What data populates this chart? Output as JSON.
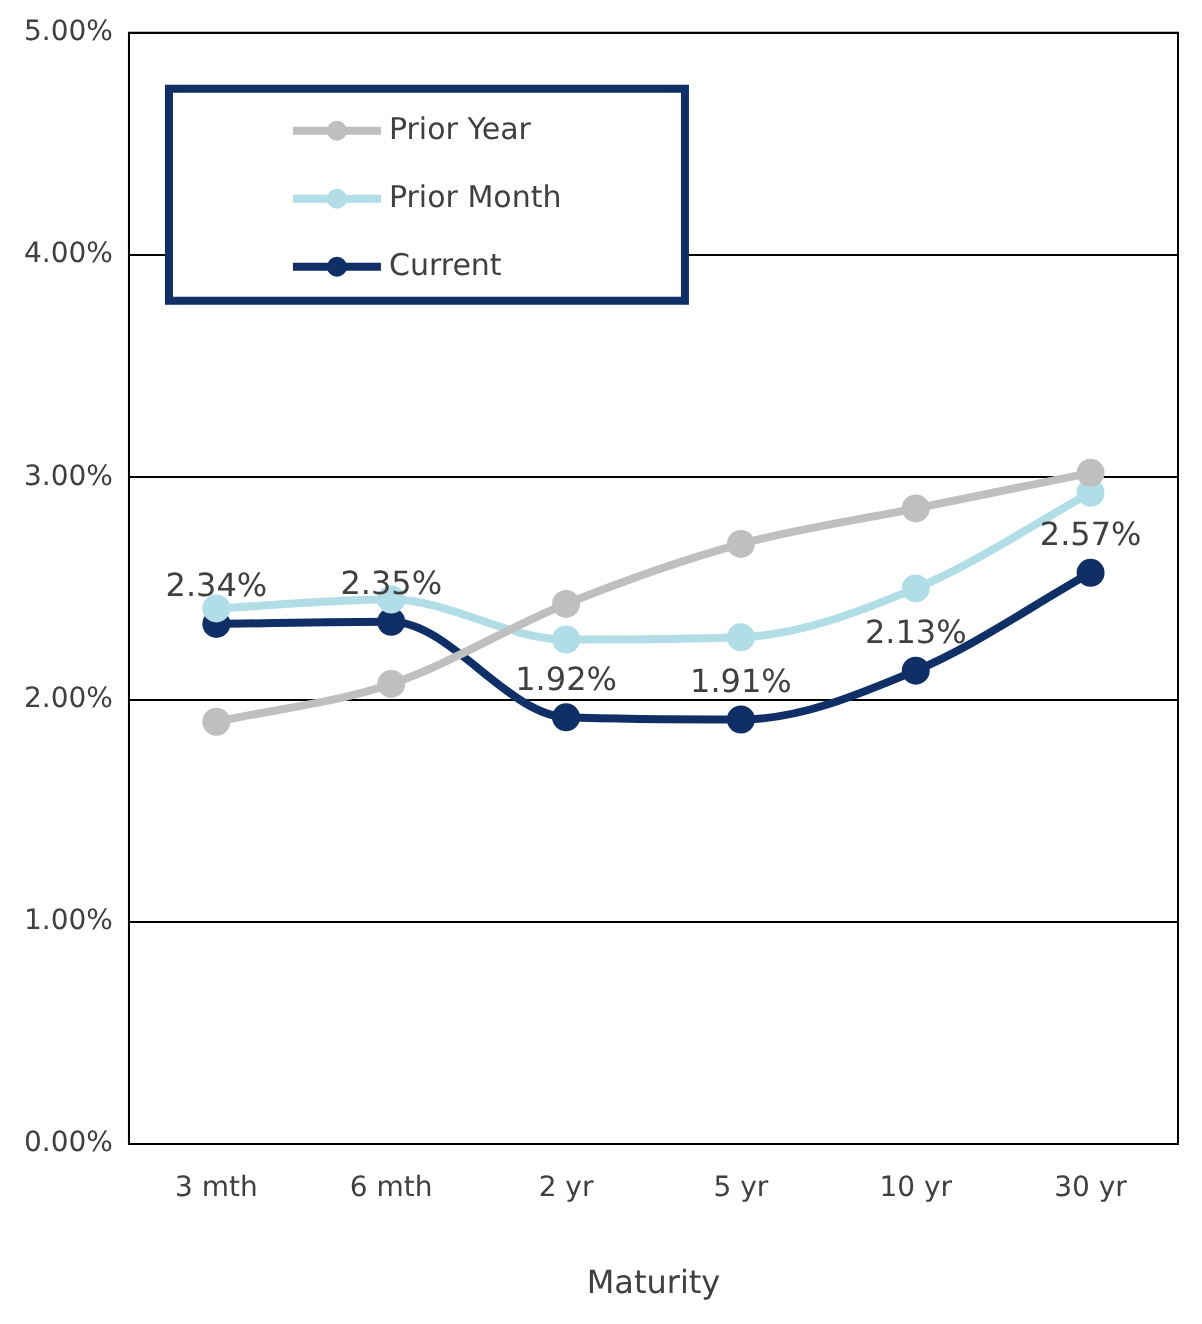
{
  "chart_data": {
    "type": "line",
    "xlabel": "Maturity",
    "categories": [
      "3 mth",
      "6 mth",
      "2 yr",
      "5 yr",
      "10 yr",
      "30 yr"
    ],
    "series": [
      {
        "name": "Prior Year",
        "color": "#c0bfc0",
        "values": [
          1.9,
          2.07,
          2.43,
          2.7,
          2.86,
          3.02
        ]
      },
      {
        "name": "Prior Month",
        "color": "#b0dde6",
        "values": [
          2.41,
          2.45,
          2.27,
          2.28,
          2.5,
          2.93
        ]
      },
      {
        "name": "Current",
        "color": "#0f2f66",
        "values": [
          2.34,
          2.35,
          1.92,
          1.91,
          2.13,
          2.57
        ],
        "value_labels": [
          "2.34%",
          "2.35%",
          "1.92%",
          "1.91%",
          "2.13%",
          "2.57%"
        ]
      }
    ],
    "ylim": [
      0,
      5
    ],
    "yticks": [
      {
        "value": 0,
        "label": "0.00%"
      },
      {
        "value": 1,
        "label": "1.00%"
      },
      {
        "value": 2,
        "label": "2.00%"
      },
      {
        "value": 3,
        "label": "3.00%"
      },
      {
        "value": 4,
        "label": "4.00%"
      },
      {
        "value": 5,
        "label": "5.00%"
      }
    ],
    "grid": "y",
    "legend": "top left",
    "marker": "circle",
    "line_style": "solid"
  }
}
